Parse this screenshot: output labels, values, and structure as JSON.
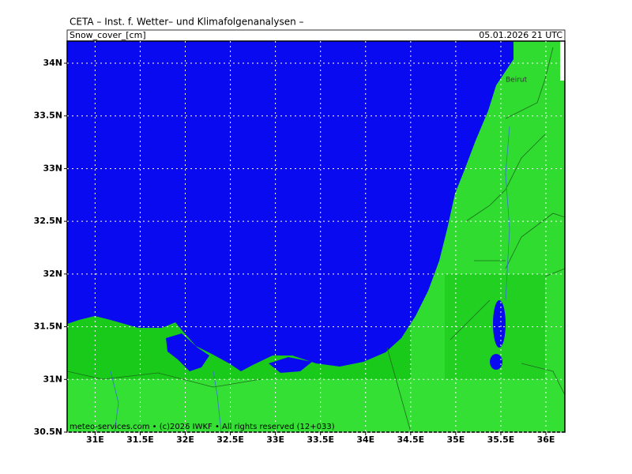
{
  "header": {
    "title": "CETA – Inst. f. Wetter– und Klimafolgenanalysen –",
    "field": "Snow_cover_[cm]",
    "time": "05.01.2026 21 UTC"
  },
  "map": {
    "lonlim": [
      30.69,
      36.21
    ],
    "latlim": [
      30.5,
      34.21
    ],
    "lon_ticks": [
      {
        "value": 31,
        "label": "31E"
      },
      {
        "value": 31.5,
        "label": "31.5E"
      },
      {
        "value": 32,
        "label": "32E"
      },
      {
        "value": 32.5,
        "label": "32.5E"
      },
      {
        "value": 33,
        "label": "33E"
      },
      {
        "value": 33.5,
        "label": "33.5E"
      },
      {
        "value": 34,
        "label": "34E"
      },
      {
        "value": 34.5,
        "label": "34.5E"
      },
      {
        "value": 35,
        "label": "35E"
      },
      {
        "value": 35.5,
        "label": "35.5E"
      },
      {
        "value": 36,
        "label": "36E"
      }
    ],
    "lat_ticks": [
      {
        "value": 30.5,
        "label": "30.5N"
      },
      {
        "value": 31,
        "label": "31N"
      },
      {
        "value": 31.5,
        "label": "31.5N"
      },
      {
        "value": 32,
        "label": "32N"
      },
      {
        "value": 32.5,
        "label": "32.5N"
      },
      {
        "value": 33,
        "label": "33N"
      },
      {
        "value": 33.5,
        "label": "33.5N"
      },
      {
        "value": 34,
        "label": "34N"
      }
    ],
    "places": [
      "Beirut"
    ]
  },
  "footer": "meteo-services.com • (c)2026 IWKF • All rights reserved (12+033)"
}
